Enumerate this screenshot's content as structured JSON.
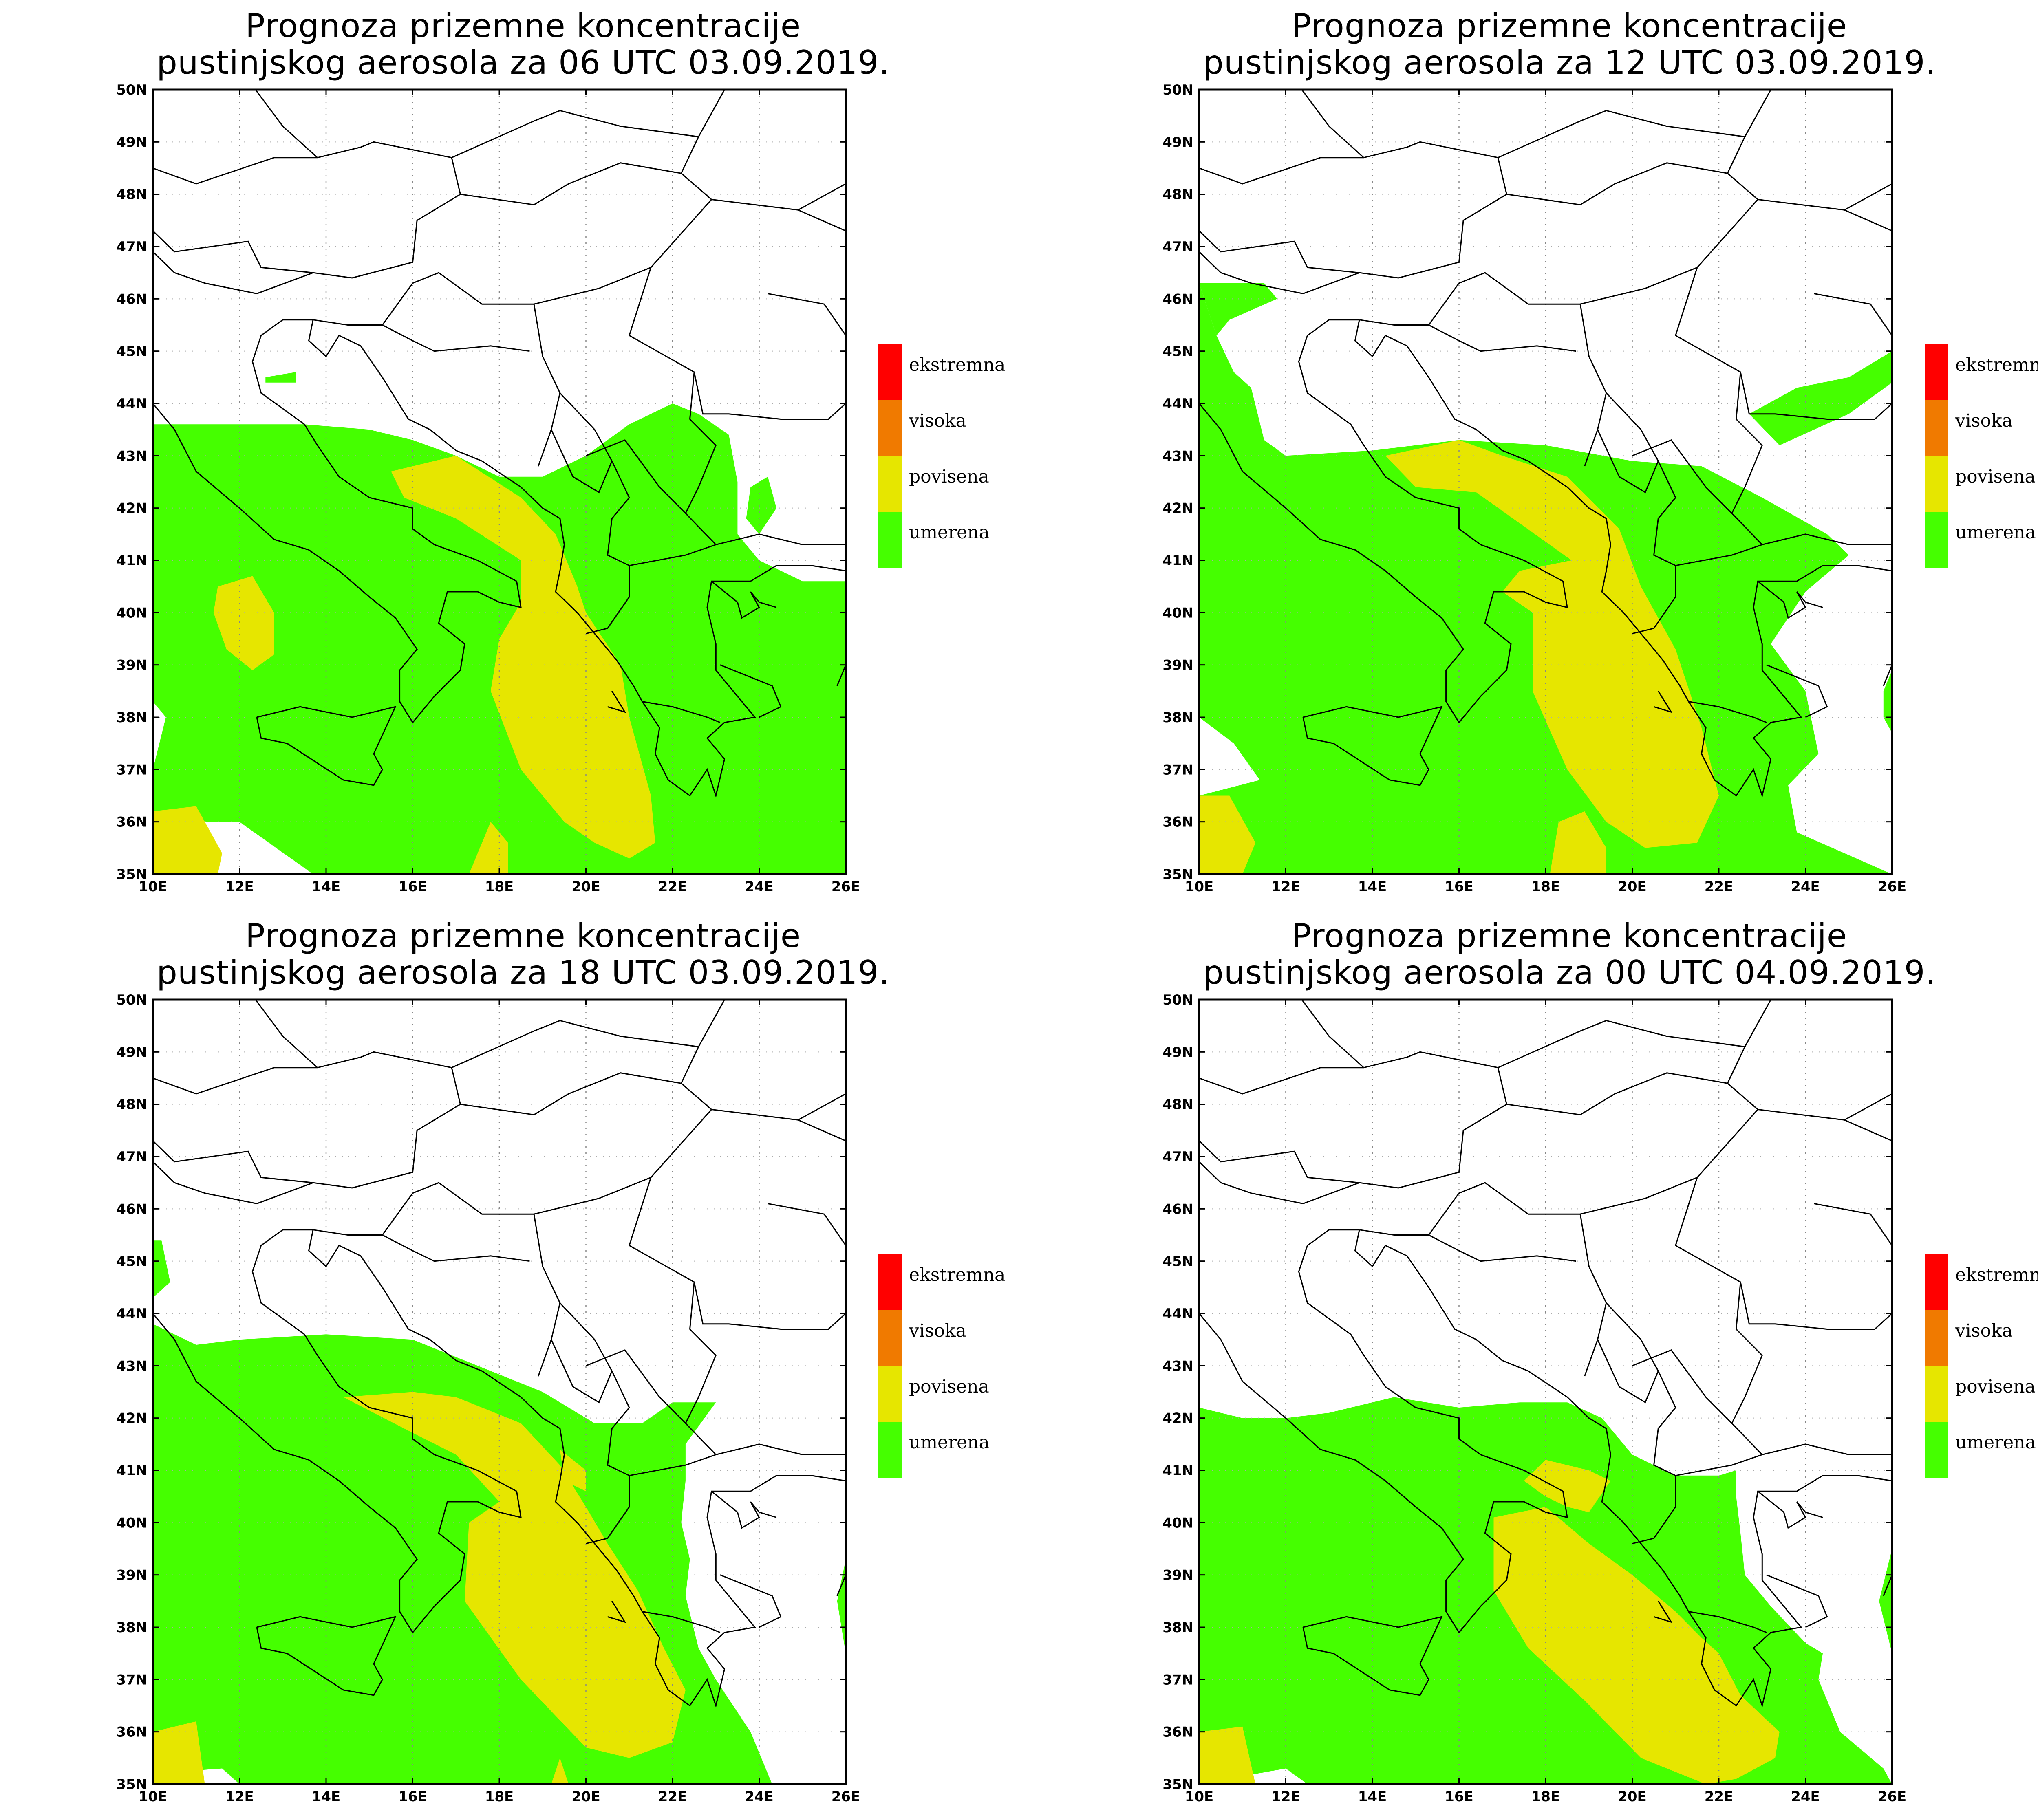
{
  "panels": [
    {
      "title_line1": "Prognoza prizemne koncentracije",
      "title_line2": "pustinjskog aerosola za 06 UTC 03.09.2019."
    },
    {
      "title_line1": "Prognoza prizemne koncentracije",
      "title_line2": "pustinjskog aerosola za 12 UTC 03.09.2019."
    },
    {
      "title_line1": "Prognoza prizemne koncentracije",
      "title_line2": "pustinjskog aerosola za 18 UTC 03.09.2019."
    },
    {
      "title_line1": "Prognoza prizemne koncentracije",
      "title_line2": "pustinjskog aerosola za 00 UTC 04.09.2019."
    }
  ],
  "lat_labels": [
    "50N",
    "49N",
    "48N",
    "47N",
    "46N",
    "45N",
    "44N",
    "43N",
    "42N",
    "41N",
    "40N",
    "39N",
    "38N",
    "37N",
    "36N",
    "35N"
  ],
  "lon_labels": [
    "10E",
    "12E",
    "14E",
    "16E",
    "18E",
    "20E",
    "22E",
    "24E",
    "26E"
  ],
  "legend": [
    {
      "label": "ekstremna",
      "color": "#ff0000"
    },
    {
      "label": "visoka",
      "color": "#f07a00"
    },
    {
      "label": "povisena",
      "color": "#e6e600"
    },
    {
      "label": "umerena",
      "color": "#45ff00"
    }
  ],
  "colors": {
    "green": "#45ff00",
    "yellow": "#e6e600"
  }
}
